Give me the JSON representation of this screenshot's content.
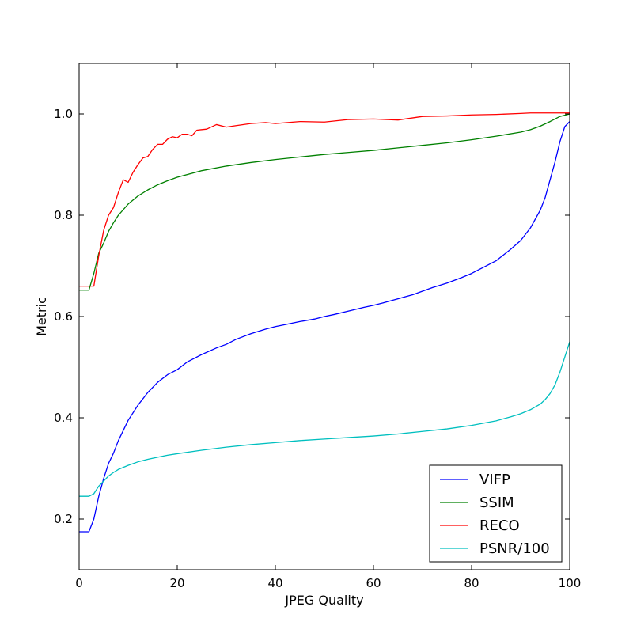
{
  "chart_data": {
    "type": "line",
    "title": "",
    "xlabel": "JPEG Quality",
    "ylabel": "Metric",
    "xlim": [
      0,
      100
    ],
    "ylim": [
      0.1,
      1.1
    ],
    "xticks": [
      0,
      20,
      40,
      60,
      80,
      100
    ],
    "yticks": [
      0.2,
      0.4,
      0.6,
      0.8,
      1.0
    ],
    "xtick_labels": [
      "0",
      "20",
      "40",
      "60",
      "80",
      "100"
    ],
    "ytick_labels": [
      "0.2",
      "0.4",
      "0.6",
      "0.8",
      "1.0"
    ],
    "grid": false,
    "legend_position": "lower-right",
    "series": [
      {
        "name": "VIFP",
        "color": "#0000ff",
        "x": [
          0,
          2,
          3,
          4,
          5,
          6,
          7,
          8,
          10,
          12,
          14,
          16,
          18,
          20,
          22,
          25,
          28,
          30,
          32,
          35,
          38,
          40,
          42,
          45,
          48,
          50,
          52,
          55,
          58,
          60,
          62,
          65,
          68,
          70,
          72,
          75,
          78,
          80,
          82,
          85,
          88,
          90,
          92,
          94,
          95,
          96,
          97,
          98,
          99,
          100
        ],
        "y": [
          0.175,
          0.175,
          0.2,
          0.245,
          0.28,
          0.31,
          0.33,
          0.355,
          0.395,
          0.425,
          0.45,
          0.47,
          0.485,
          0.495,
          0.51,
          0.525,
          0.538,
          0.545,
          0.555,
          0.566,
          0.575,
          0.58,
          0.584,
          0.59,
          0.595,
          0.6,
          0.604,
          0.611,
          0.618,
          0.622,
          0.627,
          0.635,
          0.643,
          0.65,
          0.657,
          0.666,
          0.677,
          0.685,
          0.695,
          0.71,
          0.733,
          0.75,
          0.775,
          0.81,
          0.835,
          0.87,
          0.905,
          0.945,
          0.975,
          0.985
        ]
      },
      {
        "name": "SSIM",
        "color": "#008000",
        "x": [
          0,
          2,
          3,
          4,
          5,
          6,
          7,
          8,
          10,
          12,
          14,
          16,
          18,
          20,
          25,
          30,
          35,
          40,
          45,
          50,
          55,
          60,
          65,
          70,
          75,
          80,
          85,
          90,
          92,
          94,
          96,
          98,
          100
        ],
        "y": [
          0.652,
          0.652,
          0.685,
          0.725,
          0.745,
          0.768,
          0.785,
          0.8,
          0.822,
          0.838,
          0.85,
          0.86,
          0.868,
          0.875,
          0.888,
          0.897,
          0.904,
          0.91,
          0.915,
          0.92,
          0.924,
          0.928,
          0.933,
          0.938,
          0.943,
          0.949,
          0.956,
          0.964,
          0.969,
          0.976,
          0.985,
          0.995,
          1.0
        ]
      },
      {
        "name": "RECO",
        "color": "#ff0000",
        "x": [
          0,
          2,
          3,
          4,
          5,
          6,
          7,
          8,
          9,
          10,
          11,
          12,
          13,
          14,
          15,
          16,
          17,
          18,
          19,
          20,
          21,
          22,
          23,
          24,
          26,
          28,
          30,
          32,
          35,
          38,
          40,
          45,
          50,
          55,
          60,
          65,
          70,
          75,
          80,
          85,
          90,
          92,
          95,
          100
        ],
        "y": [
          0.66,
          0.66,
          0.66,
          0.72,
          0.77,
          0.8,
          0.815,
          0.845,
          0.87,
          0.865,
          0.885,
          0.9,
          0.913,
          0.916,
          0.93,
          0.94,
          0.94,
          0.95,
          0.955,
          0.953,
          0.96,
          0.96,
          0.957,
          0.968,
          0.97,
          0.979,
          0.974,
          0.977,
          0.981,
          0.983,
          0.981,
          0.985,
          0.984,
          0.989,
          0.99,
          0.988,
          0.995,
          0.996,
          0.998,
          0.999,
          1.001,
          1.002,
          1.002,
          1.002
        ]
      },
      {
        "name": "PSNR/100",
        "color": "#00bfbf",
        "x": [
          0,
          2,
          3,
          4,
          5,
          6,
          7,
          8,
          10,
          12,
          14,
          16,
          18,
          20,
          25,
          30,
          35,
          40,
          45,
          50,
          55,
          60,
          65,
          70,
          75,
          80,
          85,
          88,
          90,
          92,
          94,
          95,
          96,
          97,
          98,
          99,
          100
        ],
        "y": [
          0.245,
          0.245,
          0.25,
          0.265,
          0.275,
          0.285,
          0.292,
          0.298,
          0.306,
          0.313,
          0.318,
          0.322,
          0.326,
          0.329,
          0.336,
          0.342,
          0.347,
          0.351,
          0.355,
          0.358,
          0.361,
          0.364,
          0.368,
          0.373,
          0.378,
          0.385,
          0.394,
          0.402,
          0.408,
          0.416,
          0.427,
          0.436,
          0.448,
          0.465,
          0.49,
          0.52,
          0.55
        ]
      }
    ]
  }
}
